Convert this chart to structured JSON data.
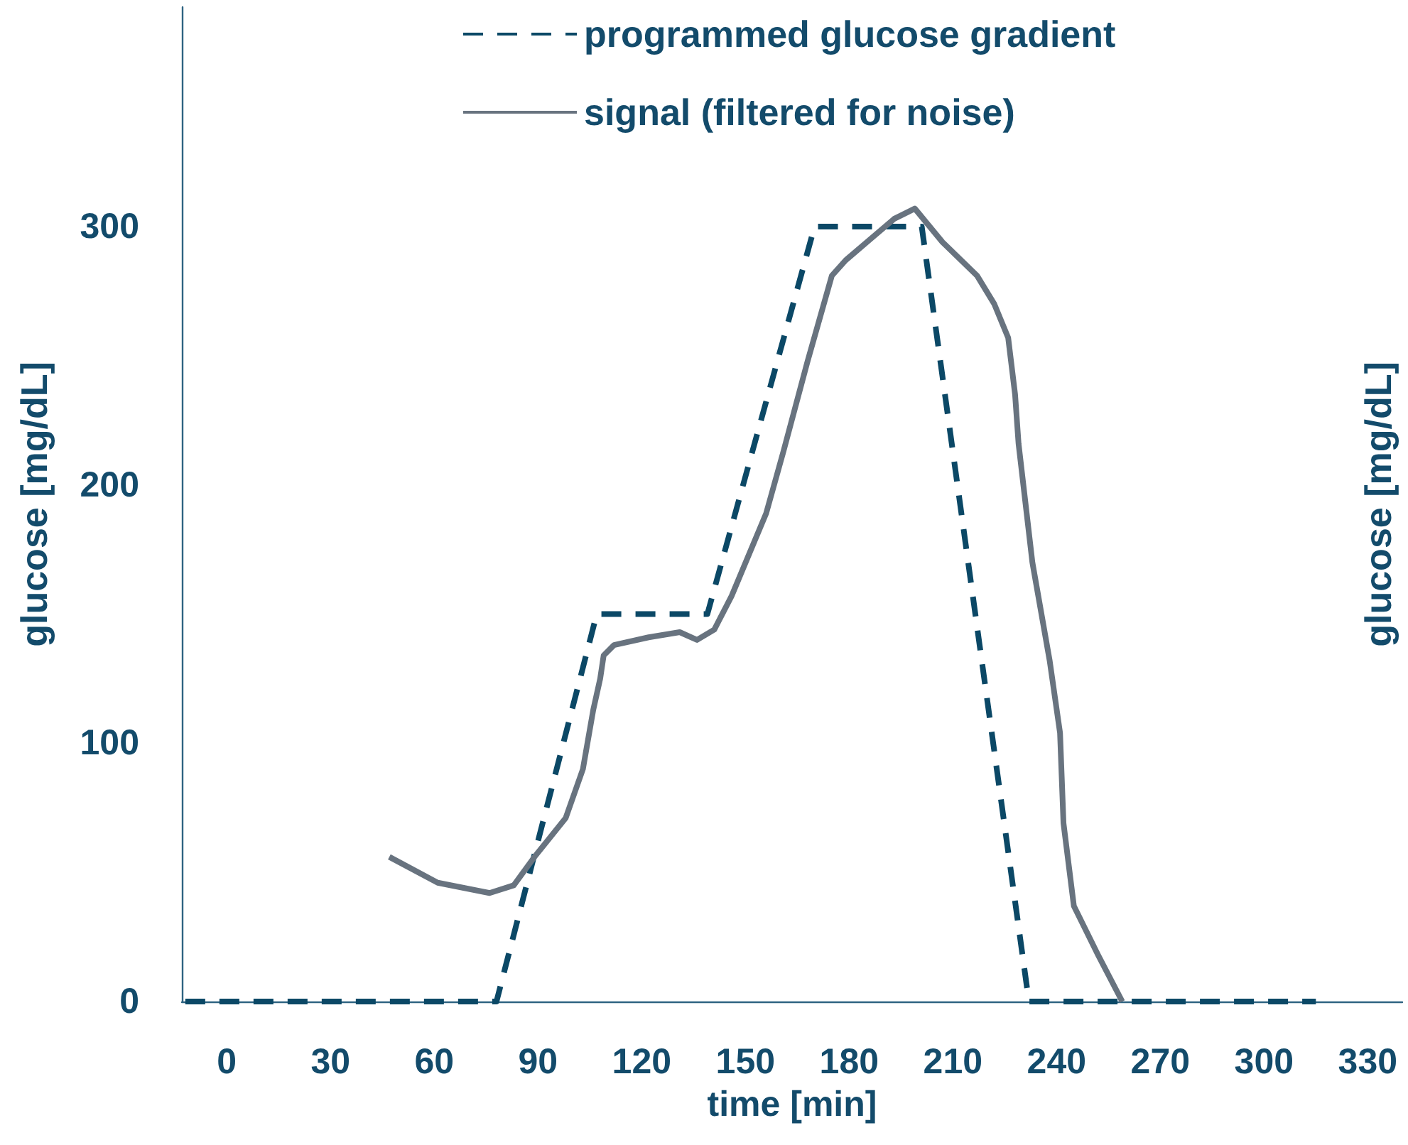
{
  "chart_data": {
    "type": "line",
    "xlabel": "time [min]",
    "ylabel": "glucose [mg/dL]",
    "y2label": "glucose [mg/dL]",
    "xlim": [
      -13,
      340
    ],
    "xticks": [
      0,
      30,
      60,
      90,
      120,
      150,
      180,
      210,
      240,
      270,
      300,
      330
    ],
    "ylim": [
      0,
      385
    ],
    "yticks": [
      0,
      100,
      200,
      300
    ],
    "grid": false,
    "legend": "top",
    "marker": "none",
    "series": [
      {
        "name": "programmed glucose gradient",
        "color": "#0b4866",
        "line_style": "dashed",
        "x": [
          -12,
          78,
          107,
          139,
          170,
          201,
          232,
          315
        ],
        "values": [
          0,
          0,
          150,
          150,
          300,
          300,
          0,
          0
        ]
      },
      {
        "name": "signal (filtered for noise)",
        "color": "#68737f",
        "line_style": "solid",
        "x": [
          47,
          61,
          76,
          83,
          89,
          98,
          103,
          106,
          108,
          109,
          112,
          122,
          131,
          136,
          141,
          146,
          156,
          161,
          168,
          175,
          179,
          186,
          193,
          199,
          207,
          217,
          222,
          226,
          228,
          229,
          233,
          238,
          241,
          242,
          245,
          252,
          259
        ],
        "values": [
          56,
          46,
          42,
          45,
          56,
          71,
          90,
          113,
          125,
          134,
          138,
          141,
          143,
          140,
          144,
          157,
          189,
          213,
          248,
          281,
          287,
          295,
          303,
          307,
          294,
          281,
          270,
          257,
          235,
          216,
          170,
          132,
          104,
          69,
          37,
          18,
          0
        ]
      }
    ]
  }
}
